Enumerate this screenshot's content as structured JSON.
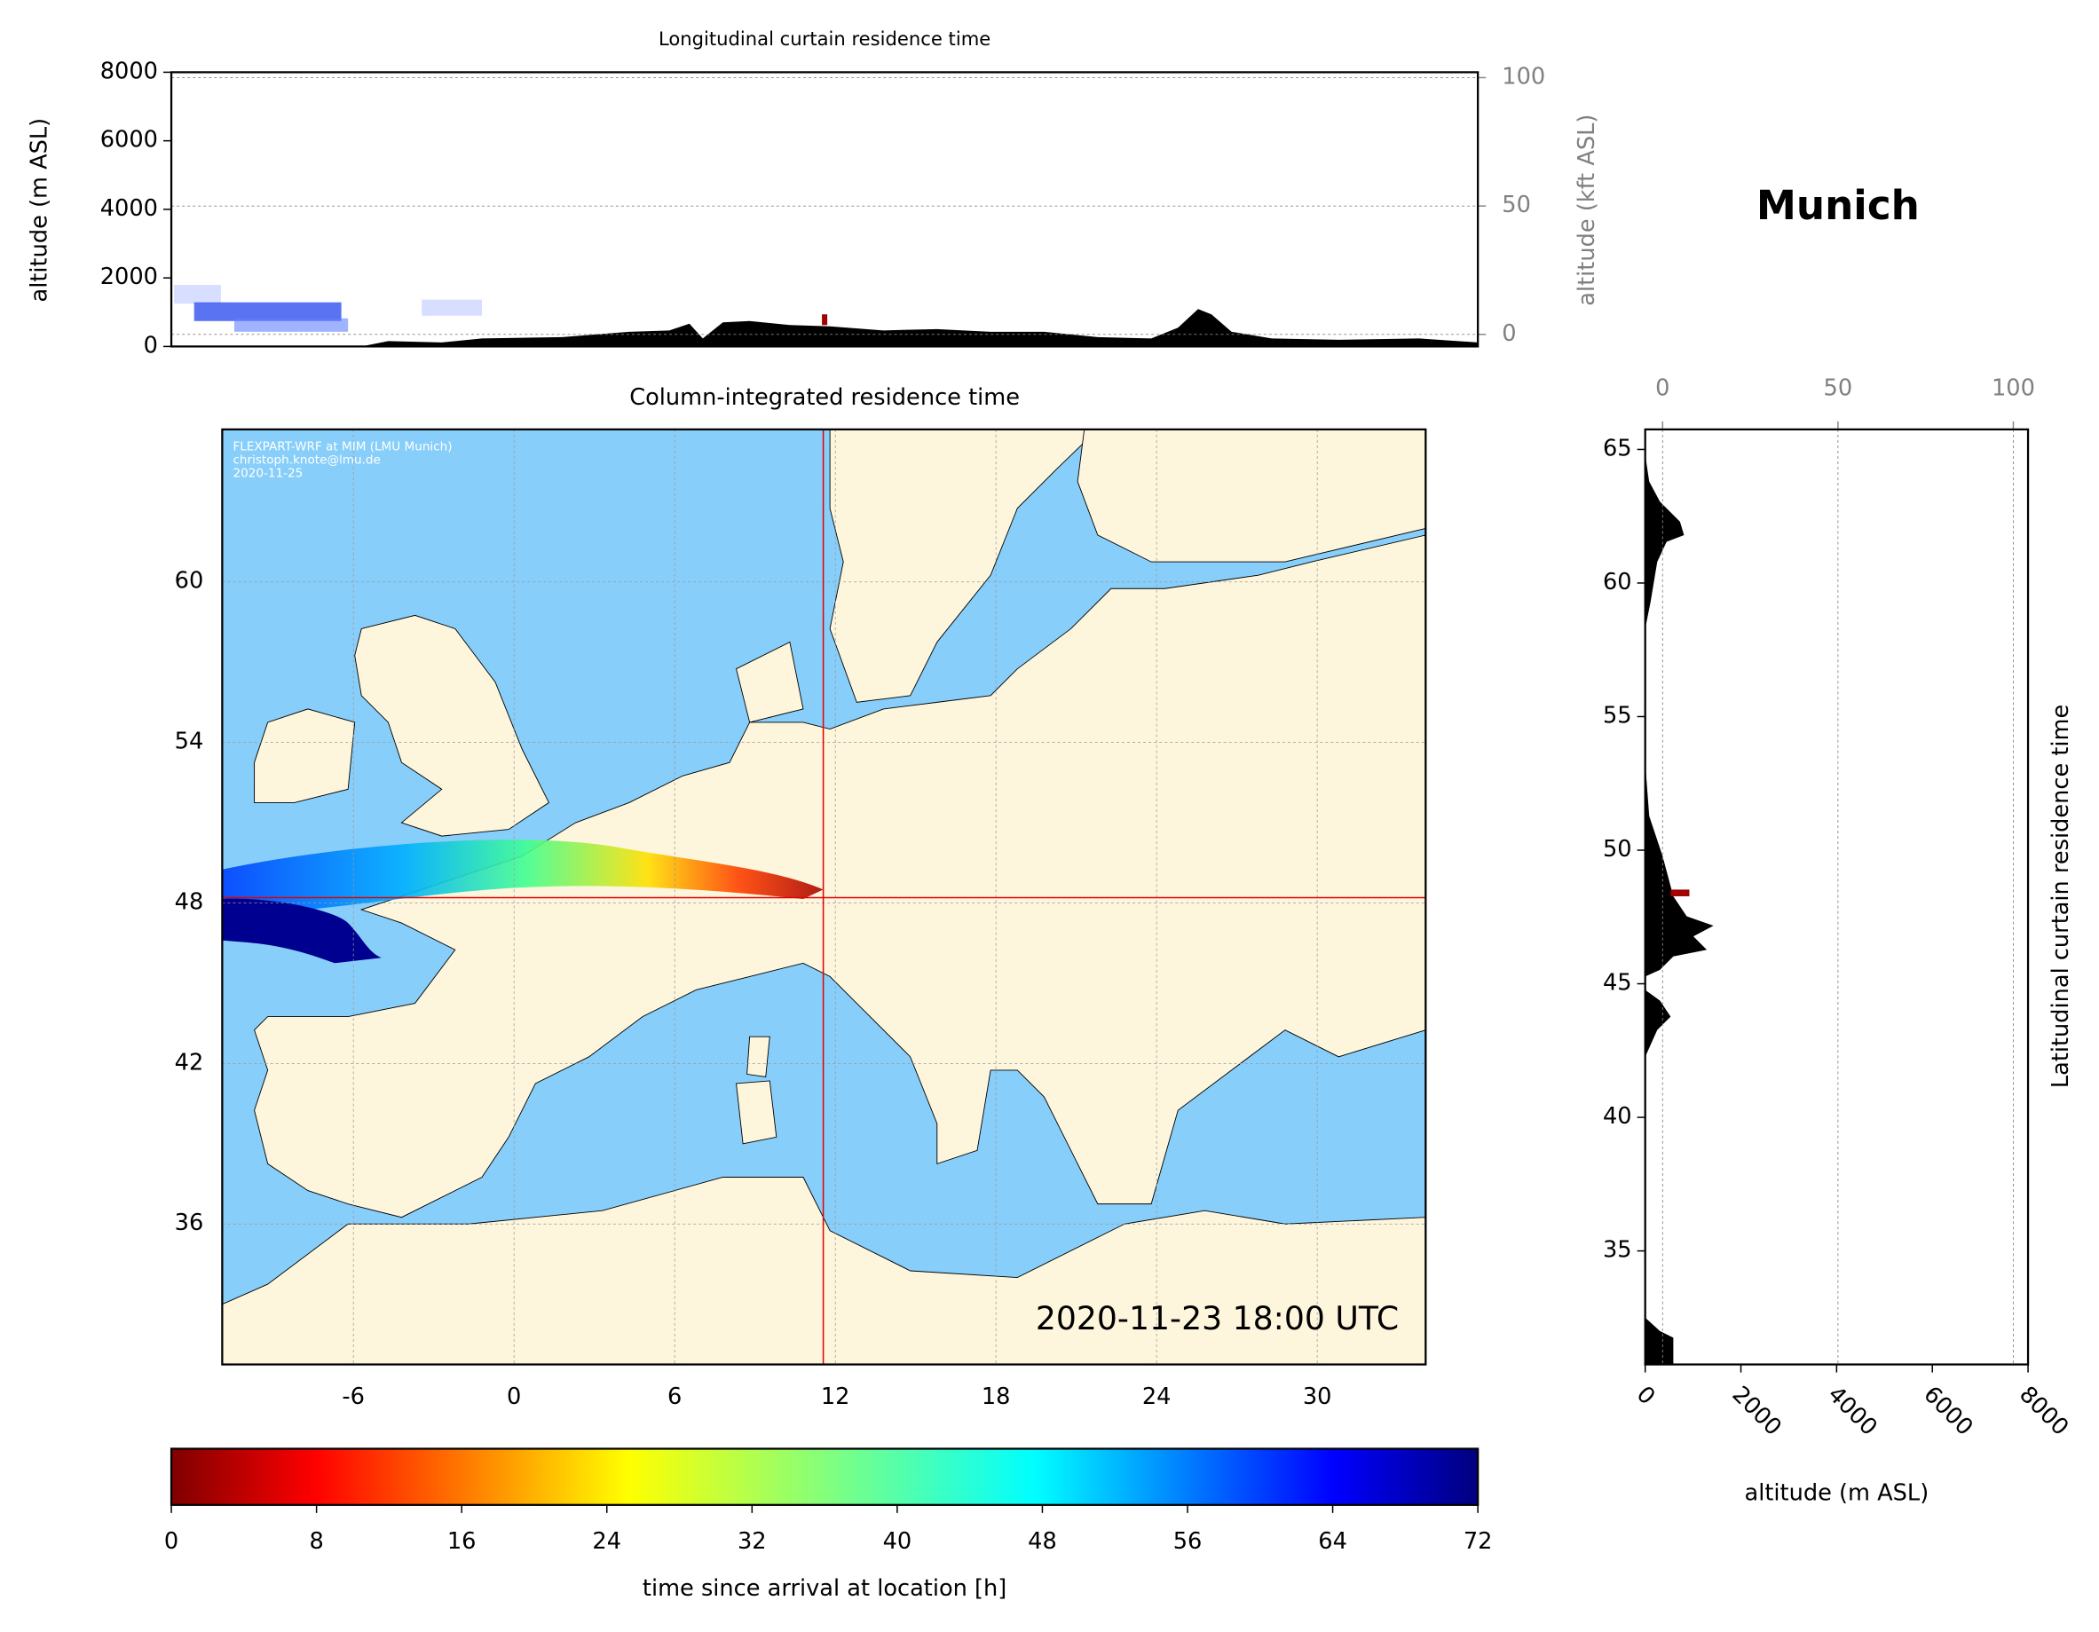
{
  "chart_data": [
    {
      "type": "curtain",
      "title": "Longitudinal curtain residence time",
      "y_label": "altitude (m ASL)",
      "y2_label": "altitude (kft ASL)",
      "ylim": [
        0,
        8000
      ],
      "yticks": [
        0,
        2000,
        4000,
        6000,
        8000
      ],
      "y2lim": [
        -4.7,
        102.1
      ],
      "y2ticks": [
        0,
        50,
        100
      ],
      "grid": true
    },
    {
      "type": "map",
      "title": "Column-integrated residence time",
      "credits": [
        "FLEXPART-WRF at MIM (LMU Munich)",
        "christoph.knote@lmu.de",
        "2020-11-25"
      ],
      "timestamp": "2020-11-23 18:00 UTC",
      "xlim": [
        -10.9,
        34.05
      ],
      "ylim": [
        30.75,
        65.7
      ],
      "xticks": [
        -6,
        0,
        6,
        12,
        18,
        24,
        30
      ],
      "yticks": [
        36,
        42,
        48,
        54,
        60
      ],
      "marker": {
        "x": 11.55,
        "y": 48.2
      },
      "marker_color": "#e00000",
      "grid": true
    },
    {
      "type": "curtain",
      "title": "Latitudinal curtain residence time",
      "location": "Munich",
      "x_label": "altitude (m ASL)",
      "xlim": [
        0,
        8000
      ],
      "xticks": [
        0,
        2000,
        4000,
        6000,
        8000
      ],
      "x2lim": [
        -4.96,
        104.2
      ],
      "x2ticks": [
        0,
        50,
        100
      ],
      "ylim": [
        30.75,
        65.75
      ],
      "yticks": [
        35,
        40,
        45,
        50,
        55,
        60,
        65
      ],
      "grid": true
    },
    {
      "type": "colorbar",
      "label": "time since arrival at location [h]",
      "lim": [
        0,
        72
      ],
      "ticks": [
        0,
        8,
        16,
        24,
        32,
        40,
        48,
        56,
        64,
        72
      ],
      "colormap": "jet_r"
    }
  ]
}
